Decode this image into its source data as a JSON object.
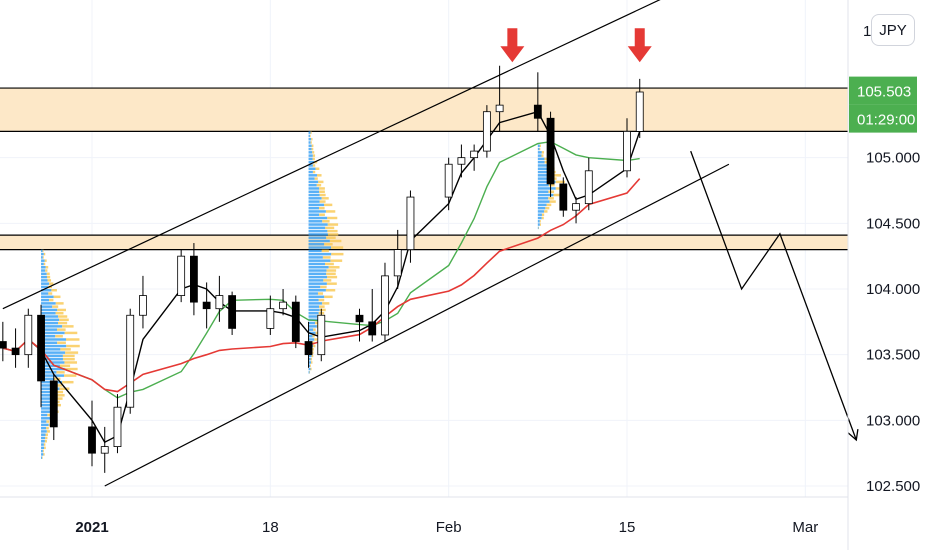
{
  "chart_data": {
    "type": "candlestick",
    "symbol_currency": "JPY",
    "y_axis": {
      "ticks": [
        102.5,
        103.0,
        103.5,
        104.0,
        104.5,
        105.0
      ],
      "tick_labels": [
        "102.500",
        "103.000",
        "103.500",
        "104.000",
        "104.500",
        "105.000"
      ],
      "top_partial_label": "1"
    },
    "x_axis": {
      "tick_labels": [
        "2021",
        "18",
        "Feb",
        "15",
        "Mar"
      ],
      "tick_dates": [
        "2021-01-04",
        "2021-01-18",
        "2021-02-01",
        "2021-02-15",
        "2021-03-01"
      ],
      "bold": [
        true,
        false,
        false,
        false,
        false
      ]
    },
    "last_price": {
      "label": "105.503",
      "countdown": "01:29:00",
      "color": "#4caf50"
    },
    "resistance_zone": {
      "low": 105.2,
      "high": 105.53,
      "fill": "#fde8c8"
    },
    "support_zone": {
      "low": 104.3,
      "high": 104.41,
      "fill": "#fde8c8"
    },
    "colors": {
      "up_candle": "#000000",
      "down_candle": "#000000",
      "ma_black": "#000000",
      "ma_green": "#4caf50",
      "ma_red": "#e53935",
      "volume_profile_blue": "#2196f3",
      "volume_profile_yellow": "#f9c74f",
      "arrow_red": "#e53935",
      "zone_border": "#000000"
    },
    "trend_channel": {
      "upper": [
        [
          "2020-12-28",
          103.85
        ],
        [
          "2021-02-23",
          106.45
        ]
      ],
      "lower": [
        [
          "2021-01-05",
          102.5
        ],
        [
          "2021-02-23",
          104.95
        ]
      ]
    },
    "projection_path": [
      [
        "2021-02-20",
        105.05
      ],
      [
        "2021-02-24",
        104.0
      ],
      [
        "2021-02-27",
        104.42
      ],
      [
        "2021-03-05",
        102.85
      ]
    ],
    "red_arrows": [
      {
        "date": "2021-02-06",
        "price": 105.65
      },
      {
        "date": "2021-02-16",
        "price": 105.65
      }
    ],
    "ohlc_daily": [
      {
        "date": "2020-12-28",
        "open": 103.6,
        "high": 103.75,
        "low": 103.45,
        "close": 103.55
      },
      {
        "date": "2020-12-29",
        "open": 103.55,
        "high": 103.7,
        "low": 103.4,
        "close": 103.5
      },
      {
        "date": "2020-12-30",
        "open": 103.5,
        "high": 103.85,
        "low": 103.4,
        "close": 103.8
      },
      {
        "date": "2020-12-31",
        "open": 103.8,
        "high": 103.88,
        "low": 103.1,
        "close": 103.3
      },
      {
        "date": "2021-01-01",
        "open": 103.3,
        "high": 103.35,
        "low": 102.85,
        "close": 102.95
      },
      {
        "date": "2021-01-04",
        "open": 102.95,
        "high": 103.15,
        "low": 102.65,
        "close": 102.75
      },
      {
        "date": "2021-01-05",
        "open": 102.75,
        "high": 102.95,
        "low": 102.6,
        "close": 102.8
      },
      {
        "date": "2021-01-06",
        "open": 102.8,
        "high": 103.2,
        "low": 102.75,
        "close": 103.1
      },
      {
        "date": "2021-01-07",
        "open": 103.1,
        "high": 103.85,
        "low": 103.05,
        "close": 103.8
      },
      {
        "date": "2021-01-08",
        "open": 103.8,
        "high": 104.1,
        "low": 103.7,
        "close": 103.95
      },
      {
        "date": "2021-01-11",
        "open": 103.95,
        "high": 104.3,
        "low": 103.9,
        "close": 104.25
      },
      {
        "date": "2021-01-12",
        "open": 104.25,
        "high": 104.35,
        "low": 103.8,
        "close": 103.9
      },
      {
        "date": "2021-01-13",
        "open": 103.9,
        "high": 104.05,
        "low": 103.7,
        "close": 103.85
      },
      {
        "date": "2021-01-14",
        "open": 103.85,
        "high": 104.1,
        "low": 103.75,
        "close": 103.95
      },
      {
        "date": "2021-01-15",
        "open": 103.95,
        "high": 103.98,
        "low": 103.65,
        "close": 103.7
      },
      {
        "date": "2021-01-18",
        "open": 103.7,
        "high": 103.95,
        "low": 103.65,
        "close": 103.85
      },
      {
        "date": "2021-01-19",
        "open": 103.85,
        "high": 104.0,
        "low": 103.8,
        "close": 103.9
      },
      {
        "date": "2021-01-20",
        "open": 103.9,
        "high": 103.95,
        "low": 103.55,
        "close": 103.6
      },
      {
        "date": "2021-01-21",
        "open": 103.6,
        "high": 103.75,
        "low": 103.4,
        "close": 103.5
      },
      {
        "date": "2021-01-22",
        "open": 103.5,
        "high": 103.85,
        "low": 103.45,
        "close": 103.8
      },
      {
        "date": "2021-01-25",
        "open": 103.8,
        "high": 103.85,
        "low": 103.6,
        "close": 103.75
      },
      {
        "date": "2021-01-26",
        "open": 103.75,
        "high": 104.0,
        "low": 103.6,
        "close": 103.65
      },
      {
        "date": "2021-01-27",
        "open": 103.65,
        "high": 104.2,
        "low": 103.6,
        "close": 104.1
      },
      {
        "date": "2021-01-28",
        "open": 104.1,
        "high": 104.45,
        "low": 104.0,
        "close": 104.3
      },
      {
        "date": "2021-01-29",
        "open": 104.3,
        "high": 104.75,
        "low": 104.2,
        "close": 104.7
      },
      {
        "date": "2021-02-01",
        "open": 104.7,
        "high": 105.0,
        "low": 104.6,
        "close": 104.95
      },
      {
        "date": "2021-02-02",
        "open": 104.95,
        "high": 105.1,
        "low": 104.85,
        "close": 105.0
      },
      {
        "date": "2021-02-03",
        "open": 105.0,
        "high": 105.1,
        "low": 104.9,
        "close": 105.05
      },
      {
        "date": "2021-02-04",
        "open": 105.05,
        "high": 105.4,
        "low": 105.0,
        "close": 105.35
      },
      {
        "date": "2021-02-05",
        "open": 105.35,
        "high": 105.7,
        "low": 105.2,
        "close": 105.4
      },
      {
        "date": "2021-02-08",
        "open": 105.4,
        "high": 105.65,
        "low": 105.2,
        "close": 105.3
      },
      {
        "date": "2021-02-09",
        "open": 105.3,
        "high": 105.35,
        "low": 104.7,
        "close": 104.8
      },
      {
        "date": "2021-02-10",
        "open": 104.8,
        "high": 104.85,
        "low": 104.55,
        "close": 104.6
      },
      {
        "date": "2021-02-11",
        "open": 104.6,
        "high": 104.7,
        "low": 104.5,
        "close": 104.65
      },
      {
        "date": "2021-02-12",
        "open": 104.65,
        "high": 105.0,
        "low": 104.6,
        "close": 104.9
      },
      {
        "date": "2021-02-15",
        "open": 104.9,
        "high": 105.3,
        "low": 104.85,
        "close": 105.2
      },
      {
        "date": "2021-02-16",
        "open": 105.2,
        "high": 105.6,
        "low": 105.15,
        "close": 105.5
      }
    ]
  }
}
